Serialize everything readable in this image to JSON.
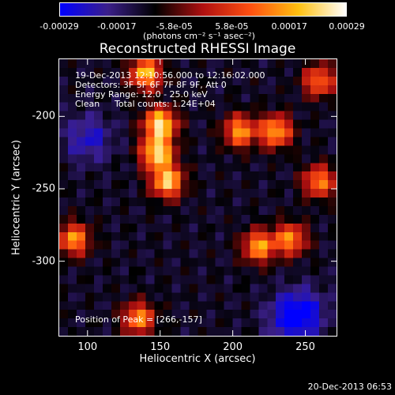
{
  "chart_data": {
    "type": "heatmap",
    "title": "Reconstructed RHESSI Image",
    "xlabel": "Heliocentric X (arcsec)",
    "ylabel": "Heliocentric Y (arcsec)",
    "xlim": [
      80,
      272
    ],
    "ylim": [
      -352,
      -160
    ],
    "x_ticks": [
      "100",
      "150",
      "200",
      "250"
    ],
    "x_tick_values": [
      100,
      150,
      200,
      250
    ],
    "y_ticks": [
      "-200",
      "-250",
      "-300"
    ],
    "y_tick_values": [
      -200,
      -250,
      -300
    ],
    "colorbar": {
      "range": [
        -0.00029,
        0.00029
      ],
      "ticks": [
        "-0.00029",
        "-0.00017",
        "-5.8e-05",
        "5.8e-05",
        "0.00017",
        "0.00029"
      ],
      "units": "(photons cm⁻² s⁻¹ asec⁻²)",
      "colormap": [
        "#0000ff",
        "#3b1f8a",
        "#000000",
        "#b01010",
        "#ff5010",
        "#ffc010",
        "#ffffff"
      ]
    },
    "annotations": {
      "time_range": "19-Dec-2013 12:10:56.000 to 12:16:02.000",
      "detectors": "Detectors: 3F 5F 6F 7F 8F 9F, Att 0",
      "energy": "Energy Range: 12.0 - 25.0 keV",
      "method": "Clean",
      "counts": "Total counts: 1.24E+04",
      "peak": "Position of Peak = [266,-157]"
    },
    "bright_regions": [
      {
        "x": 150,
        "y": -205,
        "intensity": 0.00025
      },
      {
        "x": 148,
        "y": -225,
        "intensity": 0.00024
      },
      {
        "x": 155,
        "y": -245,
        "intensity": 0.00022
      },
      {
        "x": 140,
        "y": -170,
        "intensity": 0.0002
      },
      {
        "x": 230,
        "y": -210,
        "intensity": 0.00018
      },
      {
        "x": 205,
        "y": -210,
        "intensity": 0.00016
      },
      {
        "x": 218,
        "y": -290,
        "intensity": 0.00017
      },
      {
        "x": 240,
        "y": -285,
        "intensity": 0.00015
      },
      {
        "x": 260,
        "y": -245,
        "intensity": 0.00014
      },
      {
        "x": 90,
        "y": -285,
        "intensity": 0.00016
      },
      {
        "x": 135,
        "y": -340,
        "intensity": 0.00015
      },
      {
        "x": 260,
        "y": -175,
        "intensity": 0.00012
      }
    ],
    "dark_regions": [
      {
        "x": 100,
        "y": -215,
        "intensity": -0.00027
      },
      {
        "x": 240,
        "y": -340,
        "intensity": -0.00029
      },
      {
        "x": 250,
        "y": -335,
        "intensity": -0.00026
      }
    ]
  },
  "footer": "20-Dec-2013 06:53"
}
